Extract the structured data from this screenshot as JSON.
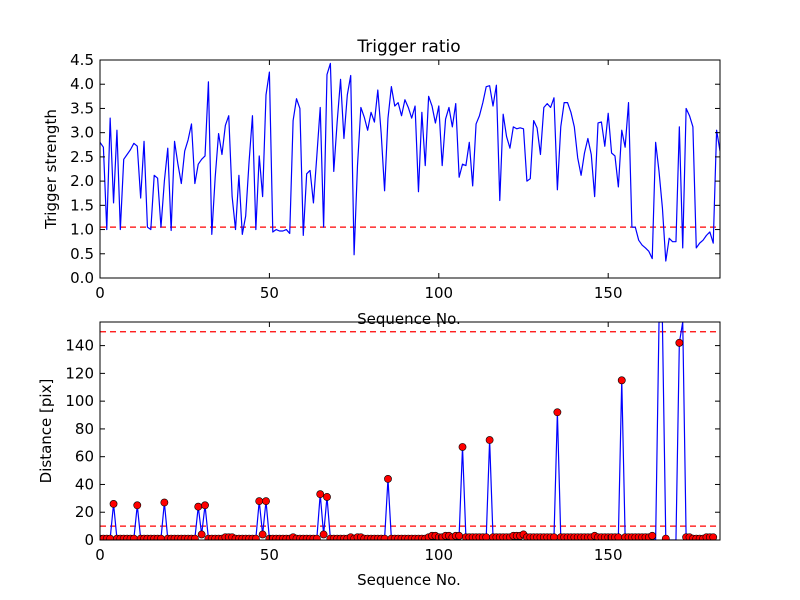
{
  "chart_data": [
    {
      "type": "line",
      "title": "Trigger ratio",
      "xlabel": "Sequence No.",
      "ylabel": "Trigger strength",
      "xlim": [
        0,
        183
      ],
      "ylim": [
        0,
        4.5
      ],
      "xticks": [
        "0",
        "50",
        "100",
        "150"
      ],
      "yticks": [
        "0.0",
        "0.5",
        "1.0",
        "1.5",
        "2.0",
        "2.5",
        "3.0",
        "3.5",
        "4.0",
        "4.5"
      ],
      "xtick_values": [
        0,
        50,
        100,
        150
      ],
      "ytick_values": [
        0,
        0.5,
        1.0,
        1.5,
        2.0,
        2.5,
        3.0,
        3.5,
        4.0,
        4.5
      ],
      "threshold": 1.05,
      "series_color": "#0000ff",
      "threshold_color": "#ff0000",
      "grid": false,
      "series": [
        {
          "values": [
            2.8,
            2.7,
            1.0,
            3.3,
            1.55,
            3.05,
            1.0,
            2.45,
            2.55,
            2.65,
            2.78,
            2.72,
            1.65,
            2.82,
            1.05,
            1.0,
            2.12,
            2.06,
            1.05,
            2.0,
            2.68,
            0.98,
            2.82,
            2.35,
            1.95,
            2.62,
            2.85,
            3.18,
            1.95,
            2.35,
            2.45,
            2.52,
            4.05,
            0.9,
            2.08,
            2.98,
            2.55,
            3.15,
            3.35,
            1.68,
            1.0,
            2.12,
            0.9,
            1.28,
            2.4,
            3.35,
            1.0,
            2.52,
            1.68,
            3.78,
            4.25,
            0.95,
            1.0,
            0.97,
            0.97,
            1.0,
            0.92,
            3.25,
            3.7,
            3.5,
            0.88,
            2.15,
            2.22,
            1.55,
            2.52,
            3.52,
            1.05,
            4.2,
            4.43,
            2.2,
            3.22,
            4.1,
            2.88,
            3.78,
            4.18,
            0.48,
            2.32,
            3.52,
            3.32,
            3.05,
            3.42,
            3.22,
            3.88,
            2.98,
            1.8,
            3.3,
            3.95,
            3.55,
            3.62,
            3.35,
            3.68,
            3.52,
            3.3,
            3.55,
            1.78,
            3.42,
            2.32,
            3.75,
            3.55,
            3.2,
            3.55,
            2.32,
            3.28,
            3.52,
            3.12,
            3.6,
            2.08,
            2.35,
            2.32,
            2.8,
            1.9,
            3.18,
            3.35,
            3.62,
            3.95,
            3.97,
            3.55,
            3.98,
            1.6,
            3.38,
            2.92,
            2.68,
            3.12,
            3.08,
            3.1,
            3.08,
            2.0,
            2.05,
            3.25,
            3.1,
            2.55,
            3.52,
            3.6,
            3.52,
            3.72,
            1.82,
            3.12,
            3.62,
            3.62,
            3.42,
            3.12,
            2.48,
            2.12,
            2.58,
            2.88,
            2.55,
            1.68,
            3.2,
            3.22,
            2.72,
            3.4,
            2.58,
            2.52,
            1.88,
            3.05,
            2.7,
            3.62,
            1.05,
            1.05,
            0.78,
            0.68,
            0.62,
            0.55,
            0.4,
            2.8,
            2.2,
            1.45,
            0.35,
            0.82,
            0.75,
            0.75,
            3.12,
            0.62,
            3.5,
            3.35,
            3.12,
            0.62,
            0.72,
            0.78,
            0.88,
            0.95,
            0.72,
            3.05,
            2.62
          ]
        }
      ]
    },
    {
      "type": "line",
      "title": "",
      "xlabel": "Sequence No.",
      "ylabel": "Distance [pix]",
      "xlim": [
        0,
        183
      ],
      "ylim": [
        0,
        157
      ],
      "xticks": [
        "0",
        "50",
        "100",
        "150"
      ],
      "yticks": [
        "0",
        "20",
        "40",
        "60",
        "80",
        "100",
        "120",
        "140"
      ],
      "xtick_values": [
        0,
        50,
        100,
        150
      ],
      "ytick_values": [
        0,
        20,
        40,
        60,
        80,
        100,
        120,
        140
      ],
      "thresholds": [
        150,
        10
      ],
      "series_color": "#0000ff",
      "marker_color": "#ff0000",
      "threshold_color": "#ff0000",
      "grid": false,
      "series": [
        {
          "values": [
            1,
            1,
            1,
            1,
            26,
            1,
            1,
            1,
            1,
            1,
            1,
            25,
            1,
            1,
            1,
            1,
            1,
            1,
            1,
            27,
            1,
            1,
            1,
            1,
            1,
            1,
            1,
            1,
            1,
            24,
            4,
            25,
            1,
            1,
            1,
            1,
            1,
            2,
            2,
            2,
            1,
            1,
            1,
            1,
            1,
            1,
            1,
            28,
            4,
            28,
            1,
            1,
            1,
            1,
            1,
            1,
            1,
            2,
            1,
            1,
            1,
            1,
            1,
            1,
            1,
            33,
            4,
            31,
            1,
            1,
            1,
            1,
            1,
            1,
            2,
            1,
            2,
            2,
            1,
            1,
            1,
            1,
            1,
            1,
            1,
            44,
            1,
            1,
            1,
            1,
            1,
            1,
            1,
            1,
            1,
            1,
            1,
            2,
            3,
            3,
            2,
            2,
            3,
            3,
            2,
            3,
            3,
            67,
            2,
            2,
            2,
            2,
            2,
            2,
            2,
            72,
            2,
            2,
            2,
            2,
            2,
            2,
            3,
            3,
            3,
            4,
            2,
            2,
            2,
            2,
            2,
            2,
            2,
            2,
            2,
            92,
            2,
            2,
            2,
            2,
            2,
            2,
            2,
            2,
            2,
            2,
            3,
            2,
            2,
            2,
            2,
            2,
            2,
            2,
            115,
            2,
            2,
            2,
            2,
            2,
            2,
            2,
            2,
            3,
            0,
            157,
            157,
            1,
            0,
            0,
            0,
            142,
            157,
            2,
            2,
            1,
            1,
            1,
            1,
            2,
            2,
            2
          ],
          "markers": [
            1,
            4,
            11,
            19,
            29,
            30,
            31,
            32,
            47,
            48,
            49,
            50,
            64,
            65,
            66,
            67,
            70,
            85,
            102,
            111,
            120,
            129,
            138,
            147,
            157,
            158,
            167,
            171,
            173,
            177,
            183
          ]
        }
      ]
    }
  ]
}
